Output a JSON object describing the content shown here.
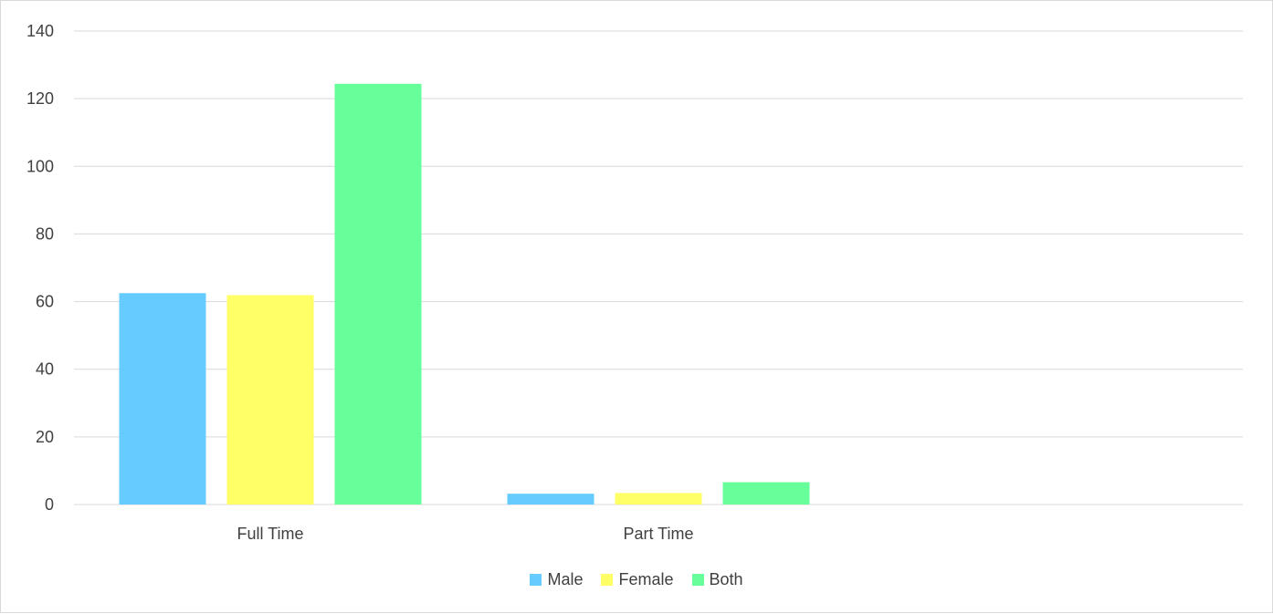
{
  "chart_data": {
    "type": "bar",
    "title": "",
    "xlabel": "",
    "ylabel": "",
    "categories": [
      "Full Time",
      "Part Time"
    ],
    "series": [
      {
        "name": "Male",
        "values": [
          62.5,
          3.2
        ],
        "color": "#66ccff"
      },
      {
        "name": "Female",
        "values": [
          61.9,
          3.4
        ],
        "color": "#ffff66"
      },
      {
        "name": "Both",
        "values": [
          124.4,
          6.6
        ],
        "color": "#66ff99"
      }
    ],
    "ylim": [
      0,
      140
    ],
    "yticks": [
      "0",
      "20",
      "40",
      "60",
      "80",
      "100",
      "120",
      "140"
    ],
    "grid": true,
    "legend_position": "bottom"
  }
}
